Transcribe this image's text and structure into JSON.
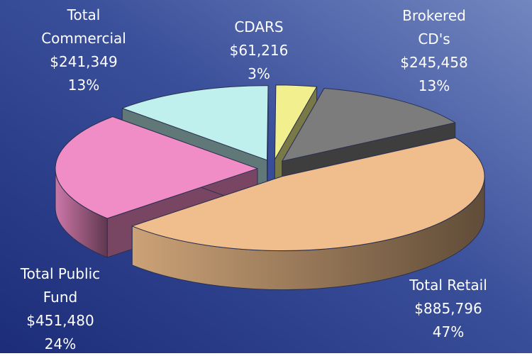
{
  "chart_data": {
    "type": "pie3d",
    "categories": [
      "Brokered CD's",
      "Total Retail",
      "Total Public Fund",
      "Total Commercial",
      "CDARS"
    ],
    "values": [
      245458,
      885796,
      451480,
      241349,
      61216
    ],
    "value_labels": [
      "$245,458",
      "$885,796",
      "$451,480",
      "$241,349",
      "$61,216"
    ],
    "percent_labels": [
      "13%",
      "47%",
      "24%",
      "13%",
      "3%"
    ],
    "colors": [
      "#7c7c7c",
      "#f0be8c",
      "#f08cc6",
      "#bff0ee",
      "#f2f08e"
    ]
  }
}
